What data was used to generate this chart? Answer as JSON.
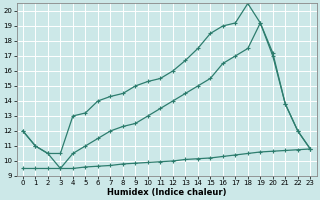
{
  "xlabel": "Humidex (Indice chaleur)",
  "bg_color": "#cce8e8",
  "line_color": "#2d7d6e",
  "grid_color": "#b8d8d8",
  "xlim": [
    -0.5,
    23.5
  ],
  "ylim": [
    9,
    20.5
  ],
  "yticks": [
    9,
    10,
    11,
    12,
    13,
    14,
    15,
    16,
    17,
    18,
    19,
    20
  ],
  "xticks": [
    0,
    1,
    2,
    3,
    4,
    5,
    6,
    7,
    8,
    9,
    10,
    11,
    12,
    13,
    14,
    15,
    16,
    17,
    18,
    19,
    20,
    21,
    22,
    23
  ],
  "line1_x": [
    0,
    1,
    2,
    3,
    4,
    5,
    6,
    7,
    8,
    9,
    10,
    11,
    12,
    13,
    14,
    15,
    16,
    17,
    18,
    19,
    20,
    21,
    22,
    23
  ],
  "line1_y": [
    12,
    11,
    10.5,
    10.5,
    13,
    13.2,
    14,
    14.3,
    14.5,
    15,
    15.3,
    15.5,
    16,
    16.7,
    17.5,
    18.5,
    19,
    19.2,
    20.5,
    19.2,
    17,
    13.8,
    12,
    10.8
  ],
  "line2_x": [
    0,
    1,
    2,
    3,
    4,
    5,
    6,
    7,
    8,
    9,
    10,
    11,
    12,
    13,
    14,
    15,
    16,
    17,
    18,
    19,
    20,
    21,
    22,
    23
  ],
  "line2_y": [
    12,
    11,
    10.5,
    9.5,
    10.5,
    11,
    11.5,
    12,
    12.3,
    12.5,
    13,
    13.5,
    14,
    14.5,
    15,
    15.5,
    16.5,
    17,
    17.5,
    19.2,
    17.2,
    13.8,
    12,
    10.8
  ],
  "line3_x": [
    0,
    1,
    2,
    3,
    4,
    5,
    6,
    7,
    8,
    9,
    10,
    11,
    12,
    13,
    14,
    15,
    16,
    17,
    18,
    19,
    20,
    21,
    22,
    23
  ],
  "line3_y": [
    9.5,
    9.5,
    9.5,
    9.5,
    9.5,
    9.6,
    9.65,
    9.7,
    9.8,
    9.85,
    9.9,
    9.95,
    10.0,
    10.1,
    10.15,
    10.2,
    10.3,
    10.4,
    10.5,
    10.6,
    10.65,
    10.7,
    10.75,
    10.8
  ]
}
